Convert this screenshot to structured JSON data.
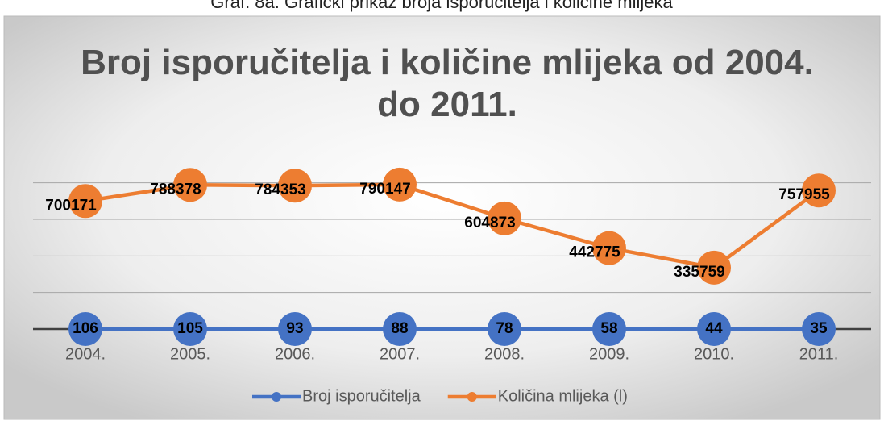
{
  "caption": "Graf. 8a. Grafički prikaz broja isporučitelja i količine mlijeka",
  "chart_data": {
    "type": "line",
    "title": "Broj isporučitelja i količine mlijeka od 2004. do 2011.",
    "categories": [
      "2004.",
      "2005.",
      "2006.",
      "2007.",
      "2008.",
      "2009.",
      "2010.",
      "2011."
    ],
    "series": [
      {
        "name": "Broj isporučitelja",
        "color": "#4472c4",
        "values": [
          106,
          105,
          93,
          88,
          78,
          58,
          44,
          35
        ]
      },
      {
        "name": "Količina mlijeka (l)",
        "color": "#ed7d31",
        "values": [
          700171,
          788378,
          784353,
          790147,
          604873,
          442775,
          335759,
          757955
        ]
      }
    ],
    "ylim": [
      0,
      900000
    ],
    "yticks": [
      0,
      200000,
      400000,
      600000,
      800000
    ],
    "grid": true,
    "legend": "bottom"
  }
}
